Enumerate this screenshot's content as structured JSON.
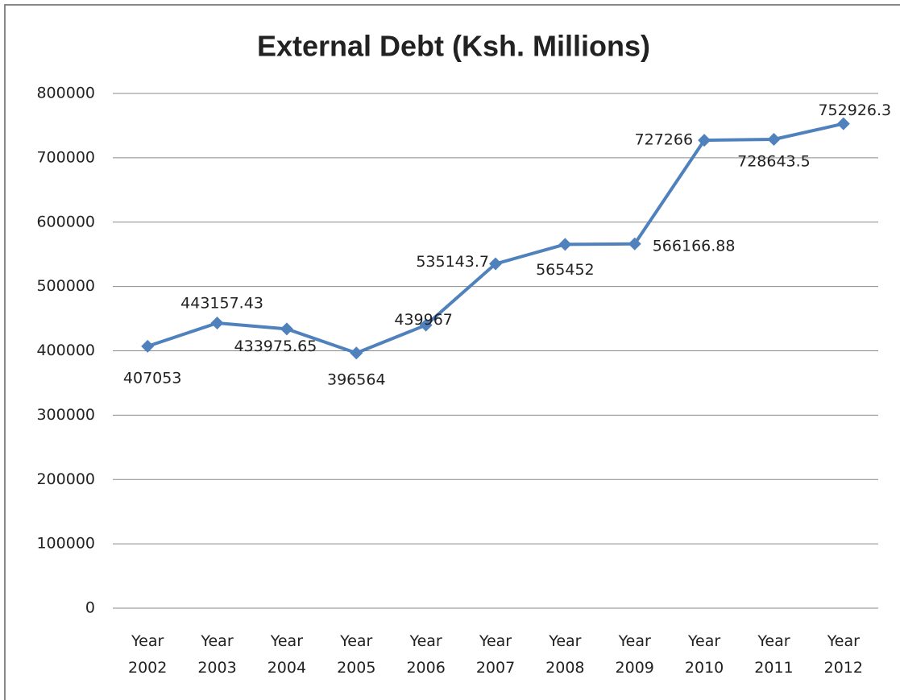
{
  "chart_data": {
    "type": "line",
    "title": "External Debt  (Ksh. Millions)",
    "categories": [
      "Year 2002",
      "Year 2003",
      "Year 2004",
      "Year 2005",
      "Year 2006",
      "Year 2007",
      "Year 2008",
      "Year 2009",
      "Year 2010",
      "Year 2011",
      "Year 2012"
    ],
    "series": [
      {
        "name": "External Debt",
        "color": "#4f81bd",
        "values": [
          407053,
          443157.43,
          433975.65,
          396564,
          439967,
          535143.7,
          565452,
          566166.88,
          727266,
          728643.5,
          752926.3
        ]
      }
    ],
    "ylim": [
      0,
      800000
    ],
    "yticks": [
      0,
      100000,
      200000,
      300000,
      400000,
      500000,
      600000,
      700000,
      800000
    ],
    "grid": true
  }
}
